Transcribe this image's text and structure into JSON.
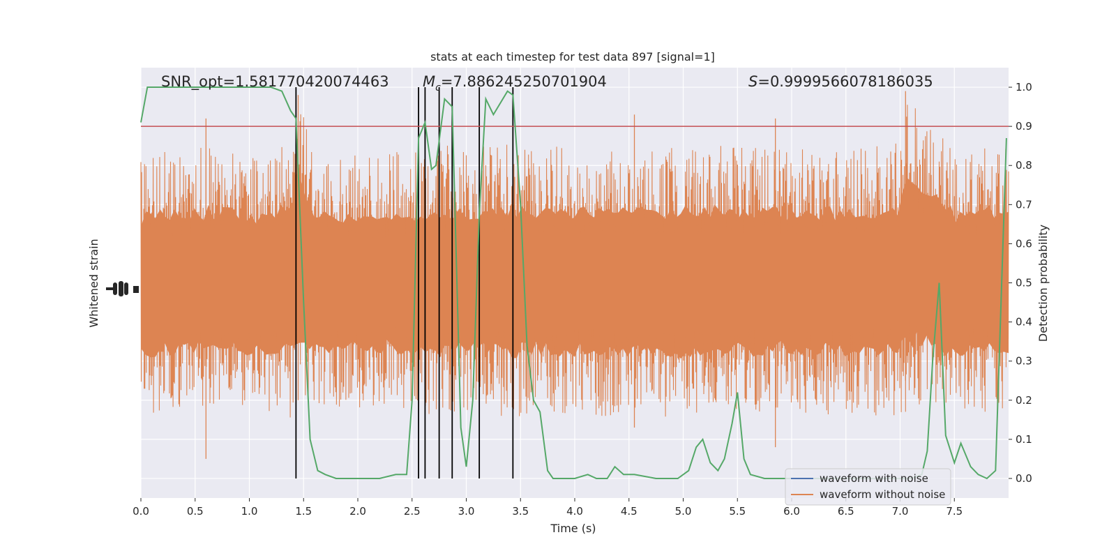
{
  "chart_data": {
    "type": "line",
    "title": "stats at each timestep for test data 897 [signal=1]",
    "xlabel": "Time (s)",
    "ylabel_left": "Whitened strain",
    "ylabel_right": "Detection probability",
    "xlim": [
      0.0,
      8.0
    ],
    "ylim_right": [
      -0.05,
      1.05
    ],
    "x_ticks": [
      "0.0",
      "0.5",
      "1.0",
      "1.5",
      "2.0",
      "2.5",
      "3.0",
      "3.5",
      "4.0",
      "4.5",
      "5.0",
      "5.5",
      "6.0",
      "6.5",
      "7.0",
      "7.5"
    ],
    "y_ticks_right": [
      "0.0",
      "0.1",
      "0.2",
      "0.3",
      "0.4",
      "0.5",
      "0.6",
      "0.7",
      "0.8",
      "0.9",
      "1.0"
    ],
    "annotations": {
      "snr": "SNR_opt=1.581770420074463",
      "mc": "=7.886245250701904",
      "s": "=0.9999566078186035"
    },
    "threshold": 0.9,
    "vlines": [
      1.43,
      2.56,
      2.62,
      2.75,
      2.87,
      3.12,
      3.43
    ],
    "legend": [
      "waveform with noise",
      "waveform without noise"
    ],
    "series": [
      {
        "name": "waveform with noise",
        "color": "#4c72b0"
      },
      {
        "name": "waveform without noise",
        "color": "#dd8452",
        "envelope": {
          "x": [
            0.0,
            0.2,
            0.4,
            0.6,
            0.8,
            1.0,
            1.2,
            1.4,
            1.45,
            1.6,
            1.8,
            2.0,
            2.2,
            2.4,
            2.6,
            2.8,
            3.0,
            3.2,
            3.4,
            3.6,
            3.8,
            4.0,
            4.5,
            5.0,
            5.5,
            6.0,
            6.5,
            7.0,
            7.05,
            7.5,
            8.0
          ],
          "upper": [
            0.82,
            0.84,
            0.83,
            0.85,
            0.84,
            0.83,
            0.84,
            0.86,
            0.98,
            0.83,
            0.82,
            0.83,
            0.82,
            0.84,
            0.83,
            0.86,
            0.84,
            0.85,
            0.86,
            0.84,
            0.85,
            0.85,
            0.84,
            0.85,
            0.85,
            0.84,
            0.85,
            0.86,
            0.98,
            0.84,
            0.85
          ],
          "lower": [
            0.17,
            0.16,
            0.18,
            0.16,
            0.17,
            0.16,
            0.17,
            0.15,
            0.16,
            0.17,
            0.18,
            0.17,
            0.18,
            0.17,
            0.16,
            0.16,
            0.17,
            0.16,
            0.15,
            0.17,
            0.16,
            0.16,
            0.16,
            0.15,
            0.16,
            0.17,
            0.16,
            0.15,
            0.16,
            0.16,
            0.16
          ]
        }
      },
      {
        "name": "detection probability",
        "color": "#55a868",
        "x": [
          0.0,
          0.06,
          0.2,
          0.4,
          0.6,
          0.8,
          1.0,
          1.2,
          1.3,
          1.38,
          1.43,
          1.5,
          1.56,
          1.63,
          1.7,
          1.8,
          2.0,
          2.2,
          2.35,
          2.45,
          2.5,
          2.56,
          2.62,
          2.68,
          2.72,
          2.8,
          2.87,
          2.95,
          3.0,
          3.06,
          3.12,
          3.18,
          3.25,
          3.38,
          3.43,
          3.5,
          3.56,
          3.62,
          3.68,
          3.75,
          3.8,
          4.0,
          4.12,
          4.2,
          4.3,
          4.37,
          4.45,
          4.55,
          4.75,
          4.95,
          5.05,
          5.12,
          5.18,
          5.25,
          5.32,
          5.38,
          5.45,
          5.5,
          5.56,
          5.62,
          5.75,
          6.0,
          6.5,
          7.0,
          7.1,
          7.2,
          7.25,
          7.3,
          7.36,
          7.42,
          7.5,
          7.56,
          7.65,
          7.72,
          7.8,
          7.88,
          7.98
        ],
        "y": [
          0.91,
          1.0,
          1.0,
          1.0,
          1.0,
          1.0,
          1.0,
          1.0,
          0.99,
          0.94,
          0.92,
          0.45,
          0.1,
          0.02,
          0.01,
          0.0,
          0.0,
          0.0,
          0.01,
          0.01,
          0.2,
          0.87,
          0.91,
          0.79,
          0.8,
          0.97,
          0.95,
          0.13,
          0.03,
          0.2,
          0.68,
          0.97,
          0.93,
          0.99,
          0.98,
          0.7,
          0.34,
          0.2,
          0.17,
          0.02,
          0.0,
          0.0,
          0.01,
          0.0,
          0.0,
          0.03,
          0.01,
          0.01,
          0.0,
          0.0,
          0.02,
          0.08,
          0.1,
          0.04,
          0.02,
          0.05,
          0.14,
          0.22,
          0.05,
          0.01,
          0.0,
          0.0,
          0.0,
          0.0,
          0.0,
          0.01,
          0.07,
          0.3,
          0.5,
          0.11,
          0.04,
          0.09,
          0.03,
          0.01,
          0.0,
          0.02,
          0.87
        ]
      }
    ]
  }
}
